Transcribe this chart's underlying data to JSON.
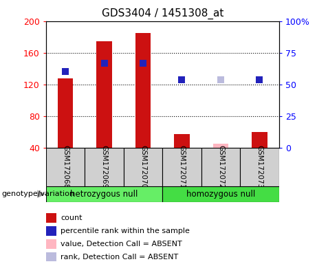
{
  "title": "GDS3404 / 1451308_at",
  "samples": [
    "GSM172068",
    "GSM172069",
    "GSM172070",
    "GSM172071",
    "GSM172072",
    "GSM172073"
  ],
  "genotype_groups": [
    {
      "label": "hetrozygous null",
      "samples": [
        0,
        1,
        2
      ],
      "color": "#66EE66"
    },
    {
      "label": "homozygous null",
      "samples": [
        3,
        4,
        5
      ],
      "color": "#44DD44"
    }
  ],
  "bar_values": [
    128,
    175,
    185,
    57,
    45,
    60
  ],
  "bar_colors": [
    "#CC1111",
    "#CC1111",
    "#CC1111",
    "#CC1111",
    "#FFB6C1",
    "#CC1111"
  ],
  "rank_pct": [
    60,
    67,
    67,
    54,
    54,
    54
  ],
  "rank_colors": [
    "#2222BB",
    "#2222BB",
    "#2222BB",
    "#2222BB",
    "#BBBBDD",
    "#2222BB"
  ],
  "ylim_left": [
    40,
    200
  ],
  "ylim_right": [
    0,
    100
  ],
  "yticks_left": [
    40,
    80,
    120,
    160,
    200
  ],
  "yticks_right": [
    0,
    25,
    50,
    75,
    100
  ],
  "ytick_labels_left": [
    "40",
    "80",
    "120",
    "160",
    "200"
  ],
  "ytick_labels_right": [
    "0",
    "25",
    "50",
    "75",
    "100%"
  ],
  "hline_values": [
    80,
    120,
    160
  ],
  "legend_items": [
    {
      "color": "#CC1111",
      "label": "count"
    },
    {
      "color": "#2222BB",
      "label": "percentile rank within the sample"
    },
    {
      "color": "#FFB6C1",
      "label": "value, Detection Call = ABSENT"
    },
    {
      "color": "#BBBBDD",
      "label": "rank, Detection Call = ABSENT"
    }
  ],
  "bar_width": 0.4,
  "rank_marker_size": 7,
  "background_color": "#FFFFFF",
  "genotype_label": "genotype/variation"
}
